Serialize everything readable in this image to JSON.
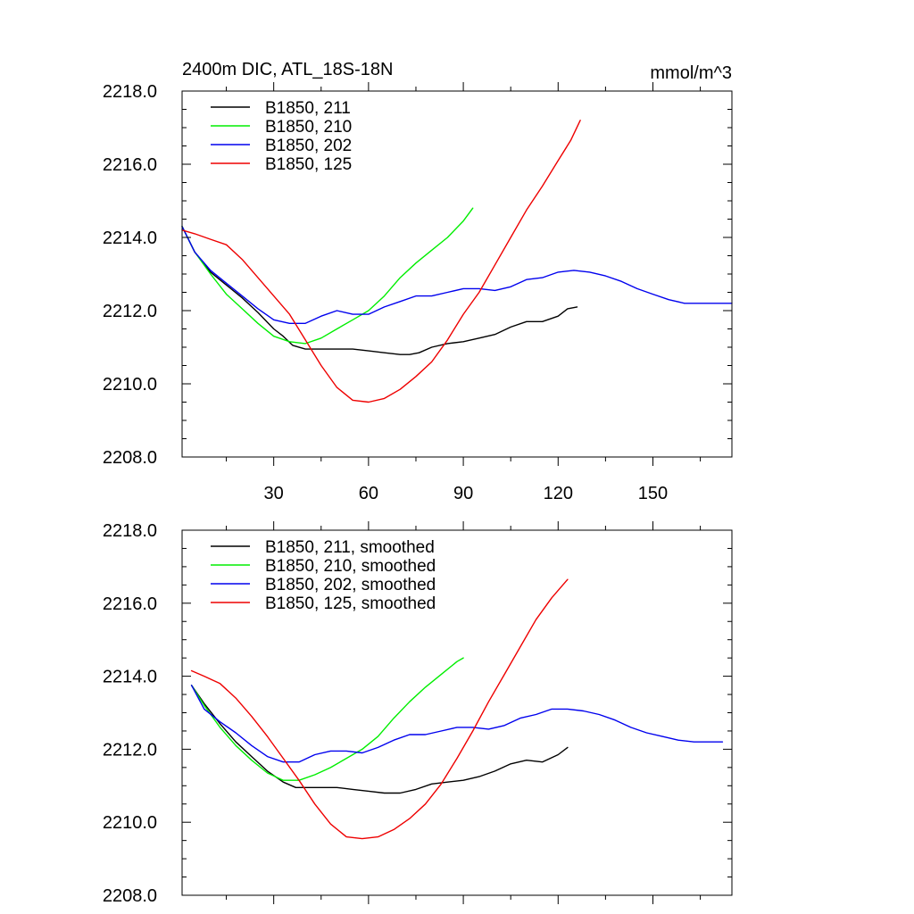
{
  "chart_data": [
    {
      "type": "line",
      "title": "2400m DIC, ATL_18S-18N",
      "units": "mmol/m^3",
      "xlim": [
        1,
        175
      ],
      "ylim": [
        2208,
        2218
      ],
      "x_ticks": [
        30,
        60,
        90,
        120,
        150
      ],
      "x_tick_labels": [
        "30",
        "60",
        "90",
        "120",
        "150"
      ],
      "y_ticks": [
        2208,
        2210,
        2212,
        2214,
        2216,
        2218
      ],
      "y_tick_labels": [
        "2208.0",
        "2210.0",
        "2212.0",
        "2214.0",
        "2216.0",
        "2218.0"
      ],
      "legend_position": "top-left",
      "series": [
        {
          "name": "B1850, 211",
          "color": "#000000",
          "x": [
            1,
            5,
            10,
            15,
            20,
            25,
            30,
            33,
            36,
            40,
            45,
            50,
            55,
            60,
            65,
            70,
            73,
            76,
            80,
            85,
            90,
            95,
            100,
            105,
            110,
            115,
            120,
            123,
            126
          ],
          "y": [
            2214.3,
            2213.6,
            2213.05,
            2212.7,
            2212.35,
            2211.95,
            2211.5,
            2211.3,
            2211.05,
            2210.95,
            2210.95,
            2210.95,
            2210.95,
            2210.9,
            2210.85,
            2210.8,
            2210.8,
            2210.85,
            2211.0,
            2211.1,
            2211.15,
            2211.25,
            2211.35,
            2211.55,
            2211.7,
            2211.7,
            2211.85,
            2212.05,
            2212.1
          ]
        },
        {
          "name": "B1850, 210",
          "color": "#00ee00",
          "x": [
            1,
            5,
            10,
            15,
            20,
            25,
            30,
            35,
            40,
            45,
            50,
            55,
            60,
            65,
            70,
            75,
            80,
            85,
            90,
            93
          ],
          "y": [
            2214.3,
            2213.6,
            2213.0,
            2212.45,
            2212.05,
            2211.65,
            2211.3,
            2211.15,
            2211.1,
            2211.25,
            2211.5,
            2211.75,
            2212.0,
            2212.4,
            2212.9,
            2213.3,
            2213.65,
            2214.0,
            2214.45,
            2214.8
          ]
        },
        {
          "name": "B1850, 202",
          "color": "#0000ee",
          "x": [
            1,
            5,
            10,
            15,
            20,
            25,
            30,
            35,
            40,
            45,
            50,
            55,
            60,
            65,
            70,
            75,
            80,
            85,
            90,
            95,
            100,
            105,
            110,
            115,
            120,
            125,
            130,
            135,
            140,
            145,
            150,
            155,
            160,
            165,
            170,
            175
          ],
          "y": [
            2214.3,
            2213.6,
            2213.1,
            2212.75,
            2212.4,
            2212.05,
            2211.75,
            2211.65,
            2211.65,
            2211.85,
            2212.0,
            2211.9,
            2211.9,
            2212.1,
            2212.25,
            2212.4,
            2212.4,
            2212.5,
            2212.6,
            2212.6,
            2212.55,
            2212.65,
            2212.85,
            2212.9,
            2213.05,
            2213.1,
            2213.05,
            2212.95,
            2212.8,
            2212.6,
            2212.45,
            2212.3,
            2212.2,
            2212.2,
            2212.2,
            2212.2
          ]
        },
        {
          "name": "B1850, 125",
          "color": "#ee0000",
          "x": [
            1,
            5,
            10,
            15,
            20,
            25,
            30,
            35,
            40,
            45,
            50,
            55,
            60,
            65,
            70,
            75,
            80,
            85,
            90,
            95,
            100,
            105,
            110,
            115,
            120,
            124,
            127
          ],
          "y": [
            2214.2,
            2214.1,
            2213.95,
            2213.8,
            2213.4,
            2212.9,
            2212.4,
            2211.9,
            2211.2,
            2210.5,
            2209.9,
            2209.55,
            2209.5,
            2209.6,
            2209.85,
            2210.2,
            2210.6,
            2211.2,
            2211.9,
            2212.5,
            2213.25,
            2214.0,
            2214.75,
            2215.4,
            2216.1,
            2216.65,
            2217.2
          ]
        }
      ]
    },
    {
      "type": "line",
      "xlim": [
        1,
        175
      ],
      "ylim": [
        2208,
        2218
      ],
      "x_ticks": [
        30,
        60,
        90,
        120,
        150
      ],
      "y_ticks": [
        2208,
        2210,
        2212,
        2214,
        2216,
        2218
      ],
      "y_tick_labels": [
        "2208.0",
        "2210.0",
        "2212.0",
        "2214.0",
        "2216.0",
        "2218.0"
      ],
      "legend_position": "top-left",
      "series": [
        {
          "name": "B1850, 211, smoothed",
          "color": "#000000",
          "x": [
            4,
            8,
            13,
            18,
            23,
            28,
            33,
            37,
            40,
            45,
            50,
            55,
            60,
            65,
            70,
            75,
            80,
            85,
            90,
            95,
            100,
            105,
            110,
            115,
            120,
            123
          ],
          "y": [
            2213.75,
            2213.25,
            2212.7,
            2212.2,
            2211.8,
            2211.4,
            2211.1,
            2210.95,
            2210.95,
            2210.95,
            2210.95,
            2210.9,
            2210.85,
            2210.8,
            2210.8,
            2210.9,
            2211.05,
            2211.1,
            2211.15,
            2211.25,
            2211.4,
            2211.6,
            2211.7,
            2211.65,
            2211.85,
            2212.05
          ]
        },
        {
          "name": "B1850, 210, smoothed",
          "color": "#00ee00",
          "x": [
            4,
            8,
            13,
            18,
            23,
            28,
            33,
            38,
            43,
            48,
            53,
            58,
            63,
            68,
            73,
            78,
            83,
            88,
            90
          ],
          "y": [
            2213.75,
            2213.2,
            2212.6,
            2212.1,
            2211.7,
            2211.35,
            2211.15,
            2211.15,
            2211.3,
            2211.5,
            2211.75,
            2212.0,
            2212.35,
            2212.85,
            2213.3,
            2213.7,
            2214.05,
            2214.4,
            2214.5
          ]
        },
        {
          "name": "B1850, 202, smoothed",
          "color": "#0000ee",
          "x": [
            4,
            8,
            13,
            18,
            23,
            28,
            33,
            38,
            43,
            48,
            53,
            58,
            63,
            68,
            73,
            78,
            83,
            88,
            93,
            98,
            103,
            108,
            113,
            118,
            123,
            128,
            133,
            138,
            143,
            148,
            153,
            158,
            163,
            168,
            172
          ],
          "y": [
            2213.75,
            2213.1,
            2212.75,
            2212.45,
            2212.1,
            2211.8,
            2211.65,
            2211.65,
            2211.85,
            2211.95,
            2211.95,
            2211.9,
            2212.05,
            2212.25,
            2212.4,
            2212.4,
            2212.5,
            2212.6,
            2212.6,
            2212.55,
            2212.65,
            2212.85,
            2212.95,
            2213.1,
            2213.1,
            2213.05,
            2212.95,
            2212.8,
            2212.6,
            2212.45,
            2212.35,
            2212.25,
            2212.2,
            2212.2,
            2212.2
          ]
        },
        {
          "name": "B1850, 125, smoothed",
          "color": "#ee0000",
          "x": [
            4,
            8,
            13,
            18,
            23,
            28,
            33,
            38,
            43,
            48,
            53,
            58,
            63,
            68,
            73,
            78,
            83,
            88,
            93,
            98,
            103,
            108,
            113,
            118,
            123
          ],
          "y": [
            2214.15,
            2214.0,
            2213.8,
            2213.4,
            2212.9,
            2212.35,
            2211.75,
            2211.15,
            2210.5,
            2209.95,
            2209.6,
            2209.55,
            2209.6,
            2209.8,
            2210.1,
            2210.5,
            2211.05,
            2211.75,
            2212.5,
            2213.3,
            2214.05,
            2214.8,
            2215.55,
            2216.15,
            2216.65
          ]
        }
      ]
    }
  ]
}
